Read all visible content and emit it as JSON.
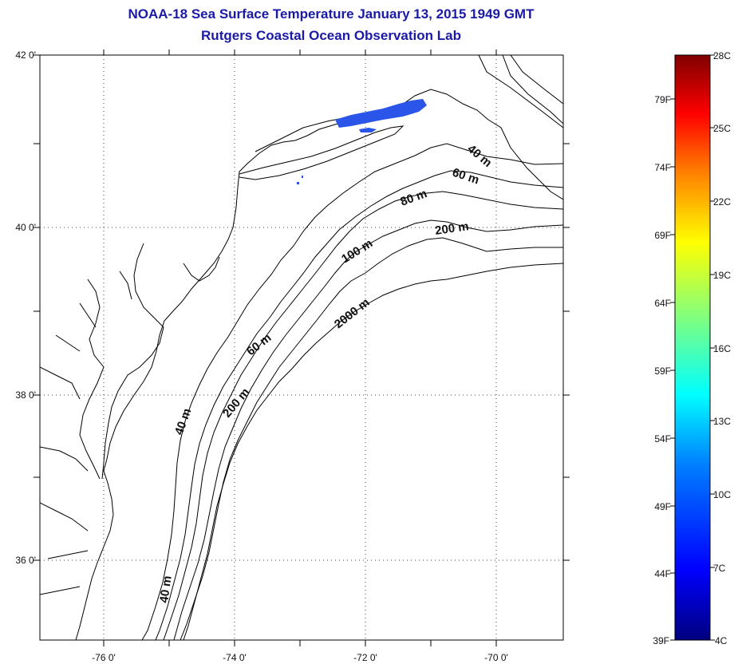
{
  "title": {
    "line1": "NOAA-18 Sea Surface Temperature January 13, 2015 1949 GMT",
    "line2": "Rutgers Coastal Ocean Observation Lab"
  },
  "axes": {
    "lat_labels": [
      "42 0'",
      "40 0'",
      "38 0'",
      "36 0'"
    ],
    "lon_labels": [
      "-76 0'",
      "-74 0'",
      "-72 0'",
      "-70 0'"
    ]
  },
  "depth_labels": [
    "40 m",
    "60 m",
    "80 m",
    "200 m",
    "100 m",
    "2000 m",
    "60 m",
    "40 m",
    "200 m",
    "40 m"
  ],
  "colorbar": {
    "celsius": [
      "28C",
      "25C",
      "22C",
      "19C",
      "16C",
      "13C",
      "10C",
      "7C",
      "4C"
    ],
    "fahrenheit": [
      "79F",
      "74F",
      "69F",
      "64F",
      "59F",
      "54F",
      "49F",
      "44F",
      "39F"
    ],
    "stops": [
      "#00007f",
      "#0000ff",
      "#007fff",
      "#00ffff",
      "#7fff7f",
      "#ffff00",
      "#ff7f00",
      "#ff0000",
      "#7f0000"
    ]
  },
  "sst_patch_color": "#2a55e8"
}
